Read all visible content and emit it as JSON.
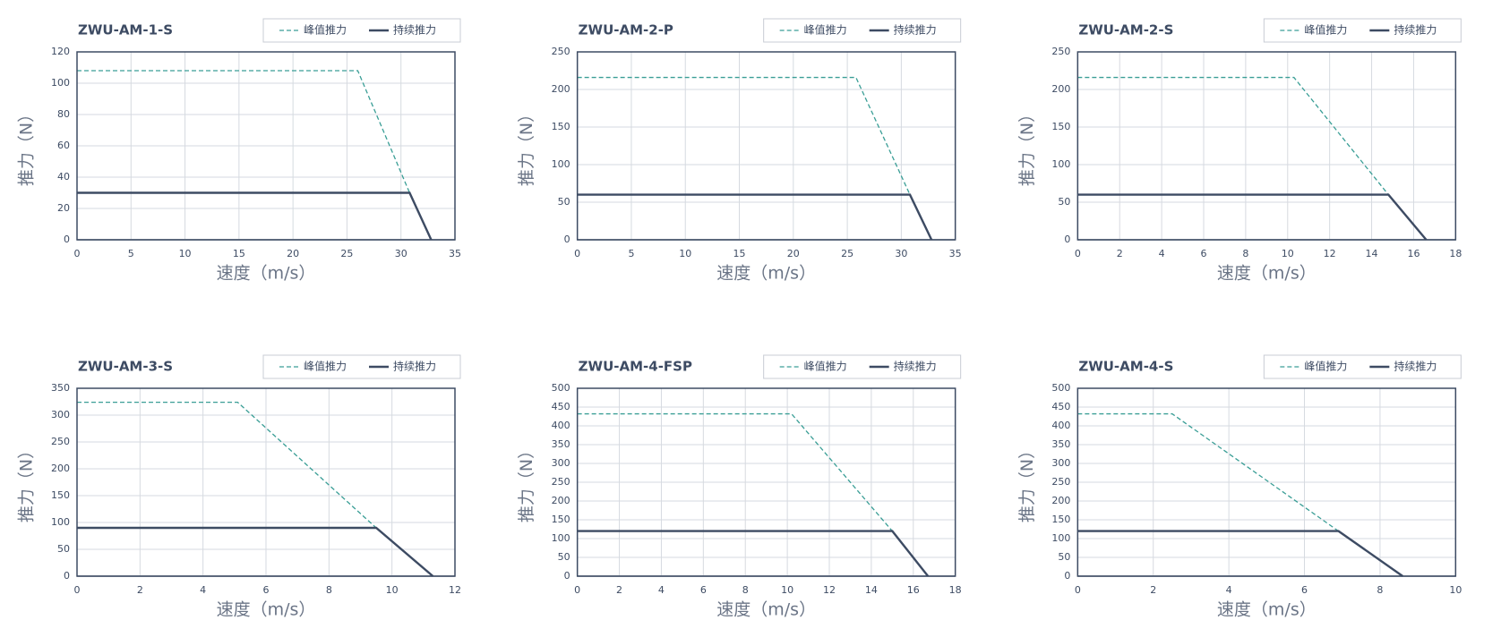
{
  "chart_data": [
    {
      "type": "line",
      "title": "ZWU-AM-1-S",
      "x_label": "速度（m/s）",
      "y_label": "推力（N）",
      "grid": true,
      "xlim": [
        0,
        35
      ],
      "xticks": [
        0,
        5,
        10,
        15,
        20,
        25,
        30,
        35
      ],
      "ylim": [
        0,
        120
      ],
      "yticks": [
        0,
        20,
        40,
        60,
        80,
        100,
        120
      ],
      "series": [
        {
          "name": "峰值推力",
          "color": "#3a9e96",
          "style": "dashed",
          "x": [
            0,
            26,
            30.8
          ],
          "values": [
            108,
            108,
            30
          ]
        },
        {
          "name": "持续推力",
          "color": "#3d4b63",
          "style": "solid",
          "x": [
            0,
            30.8,
            32.8
          ],
          "values": [
            30,
            30,
            0
          ]
        }
      ]
    },
    {
      "type": "line",
      "title": "ZWU-AM-2-P",
      "x_label": "速度（m/s）",
      "y_label": "推力（N）",
      "grid": true,
      "xlim": [
        0,
        35
      ],
      "xticks": [
        0,
        5,
        10,
        15,
        20,
        25,
        30,
        35
      ],
      "ylim": [
        0,
        250
      ],
      "yticks": [
        0,
        50,
        100,
        150,
        200,
        250
      ],
      "series": [
        {
          "name": "峰值推力",
          "color": "#3a9e96",
          "style": "dashed",
          "x": [
            0,
            25.8,
            30.8
          ],
          "values": [
            216,
            216,
            60
          ]
        },
        {
          "name": "持续推力",
          "color": "#3d4b63",
          "style": "solid",
          "x": [
            0,
            30.8,
            32.8
          ],
          "values": [
            60,
            60,
            0
          ]
        }
      ]
    },
    {
      "type": "line",
      "title": "ZWU-AM-2-S",
      "x_label": "速度（m/s）",
      "y_label": "推力（N）",
      "grid": true,
      "xlim": [
        0,
        18
      ],
      "xticks": [
        0,
        2,
        4,
        6,
        8,
        10,
        12,
        14,
        16,
        18
      ],
      "ylim": [
        0,
        250
      ],
      "yticks": [
        0,
        50,
        100,
        150,
        200,
        250
      ],
      "series": [
        {
          "name": "峰值推力",
          "color": "#3a9e96",
          "style": "dashed",
          "x": [
            0,
            10.3,
            14.8
          ],
          "values": [
            216,
            216,
            60
          ]
        },
        {
          "name": "持续推力",
          "color": "#3d4b63",
          "style": "solid",
          "x": [
            0,
            14.8,
            16.6
          ],
          "values": [
            60,
            60,
            0
          ]
        }
      ]
    },
    {
      "type": "line",
      "title": "ZWU-AM-3-S",
      "x_label": "速度（m/s）",
      "y_label": "推力（N）",
      "grid": true,
      "xlim": [
        0,
        12
      ],
      "xticks": [
        0,
        2,
        4,
        6,
        8,
        10,
        12
      ],
      "ylim": [
        0,
        350
      ],
      "yticks": [
        0,
        50,
        100,
        150,
        200,
        250,
        300,
        350
      ],
      "series": [
        {
          "name": "峰值推力",
          "color": "#3a9e96",
          "style": "dashed",
          "x": [
            0,
            5.1,
            9.5
          ],
          "values": [
            324,
            324,
            90
          ]
        },
        {
          "name": "持续推力",
          "color": "#3d4b63",
          "style": "solid",
          "x": [
            0,
            9.5,
            11.3
          ],
          "values": [
            90,
            90,
            0
          ]
        }
      ]
    },
    {
      "type": "line",
      "title": "ZWU-AM-4-FSP",
      "x_label": "速度（m/s）",
      "y_label": "推力（N）",
      "grid": true,
      "xlim": [
        0,
        18
      ],
      "xticks": [
        0,
        2,
        4,
        6,
        8,
        10,
        12,
        14,
        16,
        18
      ],
      "ylim": [
        0,
        500
      ],
      "yticks": [
        0,
        50,
        100,
        150,
        200,
        250,
        300,
        350,
        400,
        450,
        500
      ],
      "series": [
        {
          "name": "峰值推力",
          "color": "#3a9e96",
          "style": "dashed",
          "x": [
            0,
            10.2,
            15
          ],
          "values": [
            432,
            432,
            120
          ]
        },
        {
          "name": "持续推力",
          "color": "#3d4b63",
          "style": "solid",
          "x": [
            0,
            15,
            16.7
          ],
          "values": [
            120,
            120,
            0
          ]
        }
      ]
    },
    {
      "type": "line",
      "title": "ZWU-AM-4-S",
      "x_label": "速度（m/s）",
      "y_label": "推力（N）",
      "grid": true,
      "xlim": [
        0,
        10
      ],
      "xticks": [
        0,
        2,
        4,
        6,
        8,
        10
      ],
      "ylim": [
        0,
        500
      ],
      "yticks": [
        0,
        50,
        100,
        150,
        200,
        250,
        300,
        350,
        400,
        450,
        500
      ],
      "series": [
        {
          "name": "峰值推力",
          "color": "#3a9e96",
          "style": "dashed",
          "x": [
            0,
            2.5,
            6.9
          ],
          "values": [
            432,
            432,
            120
          ]
        },
        {
          "name": "持续推力",
          "color": "#3d4b63",
          "style": "solid",
          "x": [
            0,
            6.9,
            8.6
          ],
          "values": [
            120,
            120,
            0
          ]
        }
      ]
    }
  ]
}
